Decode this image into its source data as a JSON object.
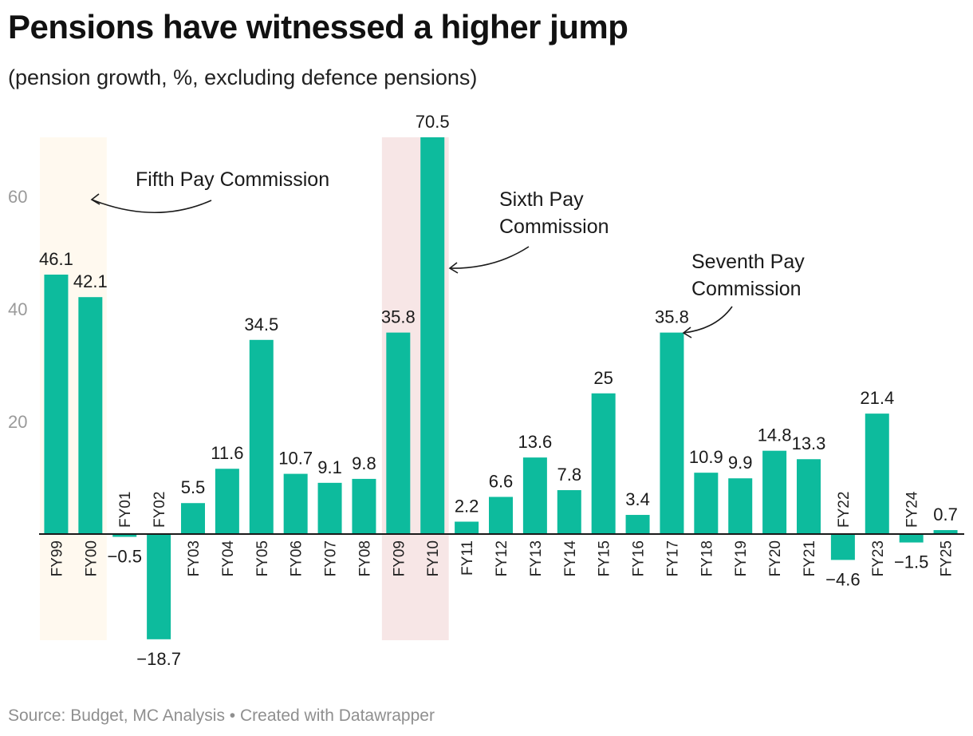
{
  "title": "Pensions have witnessed a higher jump",
  "subtitle": "(pension growth, %, excluding defence pensions)",
  "footer": {
    "source": "Source: Budget, MC Analysis",
    "separator": " • ",
    "credit": "Created with Datawrapper"
  },
  "colors": {
    "bar": "#0dbb9d",
    "highlight_fifth": "#fff9ef",
    "highlight_sixth": "#f7e6e6",
    "axis_tick": "#9a9a9a",
    "text": "#1a1a1a"
  },
  "chart_data": {
    "type": "bar",
    "categories": [
      "FY99",
      "FY00",
      "FY01",
      "FY02",
      "FY03",
      "FY04",
      "FY05",
      "FY06",
      "FY07",
      "FY08",
      "FY09",
      "FY10",
      "FY11",
      "FY12",
      "FY13",
      "FY14",
      "FY15",
      "FY16",
      "FY17",
      "FY18",
      "FY19",
      "FY20",
      "FY21",
      "FY22",
      "FY23",
      "FY24",
      "FY25"
    ],
    "values": [
      46.1,
      42.1,
      -0.5,
      -18.7,
      5.5,
      11.6,
      34.5,
      10.7,
      9.1,
      9.8,
      35.8,
      70.5,
      2.2,
      6.6,
      13.6,
      7.8,
      25,
      3.4,
      35.8,
      10.9,
      9.9,
      14.8,
      13.3,
      -4.6,
      21.4,
      -1.5,
      0.7
    ],
    "value_labels": [
      "46.1",
      "42.1",
      "−0.5",
      "−18.7",
      "5.5",
      "11.6",
      "34.5",
      "10.7",
      "9.1",
      "9.8",
      "35.8",
      "70.5",
      "2.2",
      "6.6",
      "13.6",
      "7.8",
      "25",
      "3.4",
      "35.8",
      "10.9",
      "9.9",
      "14.8",
      "13.3",
      "−4.6",
      "21.4",
      "−1.5",
      "0.7"
    ],
    "y_ticks": [
      20,
      40,
      60
    ],
    "ylim": [
      -18.7,
      70.5
    ],
    "grid": false,
    "highlight_ranges": [
      {
        "from": "FY99",
        "to": "FY00",
        "color_key": "highlight_fifth"
      },
      {
        "from": "FY09",
        "to": "FY10",
        "color_key": "highlight_sixth"
      }
    ],
    "annotations": [
      {
        "lines": [
          "Fifth Pay Commission"
        ],
        "target": "FY99"
      },
      {
        "lines": [
          "Sixth Pay",
          "Commission"
        ],
        "target": "FY10"
      },
      {
        "lines": [
          "Seventh Pay",
          "Commission"
        ],
        "target": "FY17"
      }
    ]
  }
}
